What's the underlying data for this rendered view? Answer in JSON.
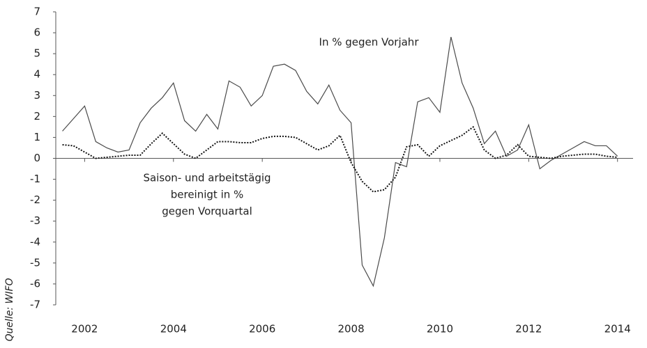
{
  "chart_data": {
    "type": "line",
    "source": "Quelle: WIFO",
    "annotations": [
      [
        "In % gegen Vorjahr"
      ],
      [
        "Saison- und arbeitstägig",
        "bereinigt in %",
        "gegen Vorquartal"
      ]
    ],
    "x": [
      2001.5,
      2001.75,
      2002,
      2002.25,
      2002.5,
      2002.75,
      2003,
      2003.25,
      2003.5,
      2003.75,
      2004,
      2004.25,
      2004.5,
      2004.75,
      2005,
      2005.25,
      2005.5,
      2005.75,
      2006,
      2006.25,
      2006.5,
      2006.75,
      2007,
      2007.25,
      2007.5,
      2007.75,
      2008,
      2008.25,
      2008.5,
      2008.75,
      2009,
      2009.25,
      2009.5,
      2009.75,
      2010,
      2010.25,
      2010.5,
      2010.75,
      2011,
      2011.25,
      2011.5,
      2011.75,
      2012,
      2012.25,
      2012.5,
      2012.75,
      2013,
      2013.25,
      2013.5,
      2013.75,
      2014
    ],
    "series": [
      {
        "color": "#4a4a4a",
        "dash": "solid",
        "values": [
          1.3,
          1.9,
          2.5,
          0.8,
          0.5,
          0.3,
          0.4,
          1.7,
          2.4,
          2.9,
          3.6,
          1.8,
          1.3,
          2.1,
          1.4,
          3.7,
          3.4,
          2.5,
          3.0,
          4.4,
          4.5,
          4.2,
          3.2,
          2.6,
          3.5,
          2.3,
          1.7,
          -5.1,
          -6.1,
          -3.8,
          -0.2,
          -0.4,
          2.7,
          2.9,
          2.2,
          5.8,
          3.6,
          2.4,
          0.7,
          1.3,
          0.1,
          0.4,
          1.6,
          -0.5,
          -0.1,
          0.2,
          0.5,
          0.8,
          0.6,
          0.6,
          0.1
        ]
      },
      {
        "color": "#111111",
        "dash": "dotted",
        "values": [
          0.65,
          0.6,
          0.3,
          0.0,
          0.05,
          0.1,
          0.15,
          0.15,
          0.7,
          1.2,
          0.7,
          0.2,
          0.0,
          0.4,
          0.8,
          0.8,
          0.75,
          0.75,
          0.95,
          1.05,
          1.05,
          1.0,
          0.7,
          0.4,
          0.6,
          1.1,
          -0.2,
          -1.1,
          -1.6,
          -1.5,
          -0.9,
          0.55,
          0.65,
          0.1,
          0.6,
          0.85,
          1.1,
          1.5,
          0.4,
          0.0,
          0.15,
          0.65,
          0.1,
          0.05,
          0.0,
          0.1,
          0.15,
          0.2,
          0.2,
          0.1,
          0.05
        ]
      }
    ],
    "xlim": [
      2001.35,
      2014.35
    ],
    "xticks": [
      2002,
      2004,
      2006,
      2008,
      2010,
      2012,
      2014
    ],
    "ylim": [
      -7,
      7
    ],
    "yticks": [
      -7,
      -6,
      -5,
      -4,
      -3,
      -2,
      -1,
      0,
      1,
      2,
      3,
      4,
      5,
      6,
      7
    ]
  }
}
